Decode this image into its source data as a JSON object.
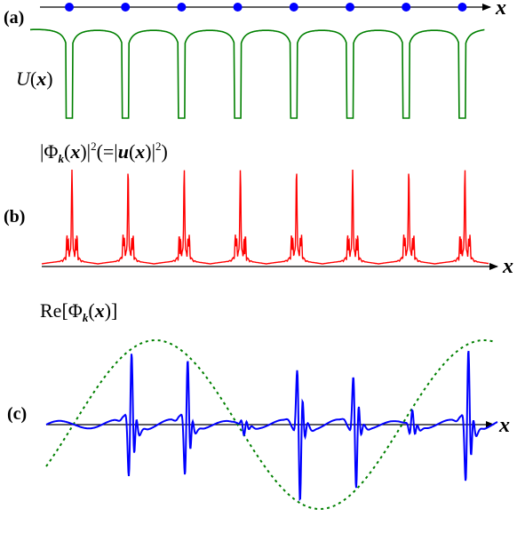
{
  "panels": {
    "a": {
      "tag": "(a)",
      "axis_var": "x",
      "potential_label": {
        "name": "U",
        "open": "(",
        "var": "x",
        "close": ")"
      },
      "atom_count": 8,
      "atom_color": "#0000ff",
      "curve_color": "#008000"
    },
    "b": {
      "tag": "(b)",
      "axis_var": "x",
      "title": {
        "bar_left": "|",
        "phi": "Φ",
        "sub": "k",
        "open": "(",
        "var": "x",
        "close_bar": ")|",
        "sup": "2",
        "eq": "(=|",
        "u": "u",
        "open2": "(",
        "var2": "x",
        "close2": ")|",
        "sup2": "2",
        "end": ")"
      },
      "curve_color": "#ff0000"
    },
    "c": {
      "tag": "(c)",
      "axis_var": "x",
      "title": {
        "re": "Re[",
        "phi": "Φ",
        "sub": "k",
        "open": "(",
        "var": "x",
        "close": ")]"
      },
      "wave_color": "#0000ff",
      "envelope_color": "#008000"
    }
  }
}
